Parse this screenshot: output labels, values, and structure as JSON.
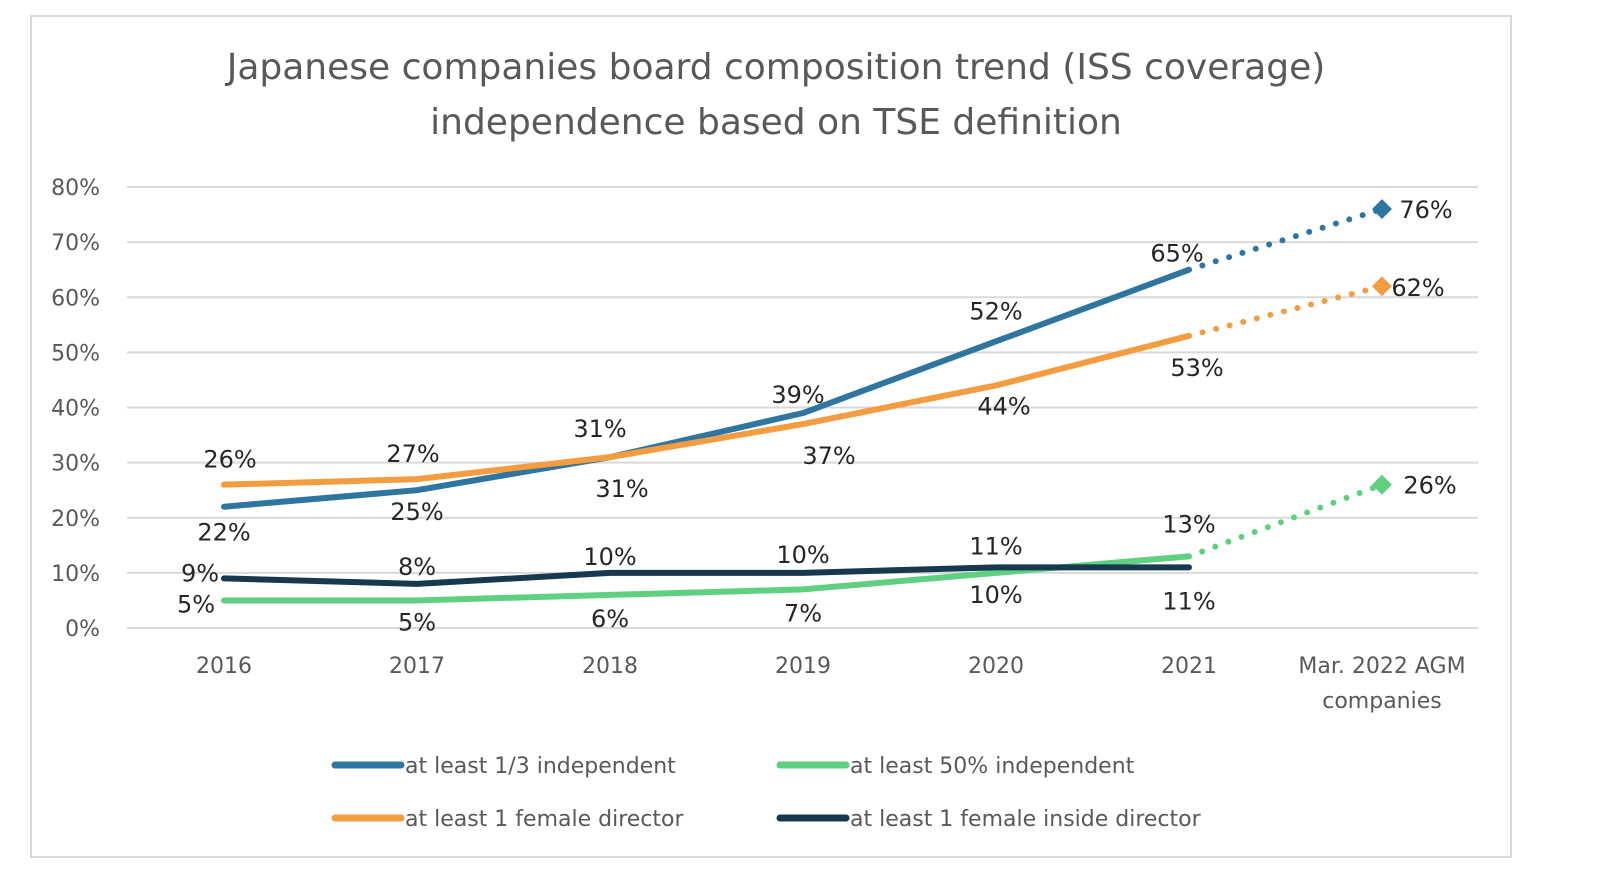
{
  "chart_data": {
    "type": "line",
    "title": "Japanese companies board composition trend (ISS coverage)",
    "subtitle": "independence based on TSE definition",
    "categories": [
      "2016",
      "2017",
      "2018",
      "2019",
      "2020",
      "2021",
      "Mar. 2022 AGM companies"
    ],
    "ylim": [
      0,
      80
    ],
    "yticks": [
      "0%",
      "10%",
      "20%",
      "30%",
      "40%",
      "50%",
      "60%",
      "70%",
      "80%"
    ],
    "grid": true,
    "legend_position": "bottom",
    "series": [
      {
        "name": "at least 1/3 independent",
        "color": "#2e75a0",
        "values": [
          22,
          25,
          31,
          39,
          52,
          65,
          76
        ],
        "projected_last": true
      },
      {
        "name": "at least 50% independent",
        "color": "#5fcf80",
        "values": [
          5,
          5,
          6,
          7,
          10,
          13,
          26
        ],
        "projected_last": true
      },
      {
        "name": "at least 1 female director",
        "color": "#f39c40",
        "values": [
          26,
          27,
          31,
          37,
          44,
          53,
          62
        ],
        "projected_last": true
      },
      {
        "name": "at least 1 female inside director",
        "color": "#17384f",
        "values": [
          9,
          8,
          10,
          10,
          11,
          11,
          null
        ],
        "projected_last": false
      }
    ]
  }
}
